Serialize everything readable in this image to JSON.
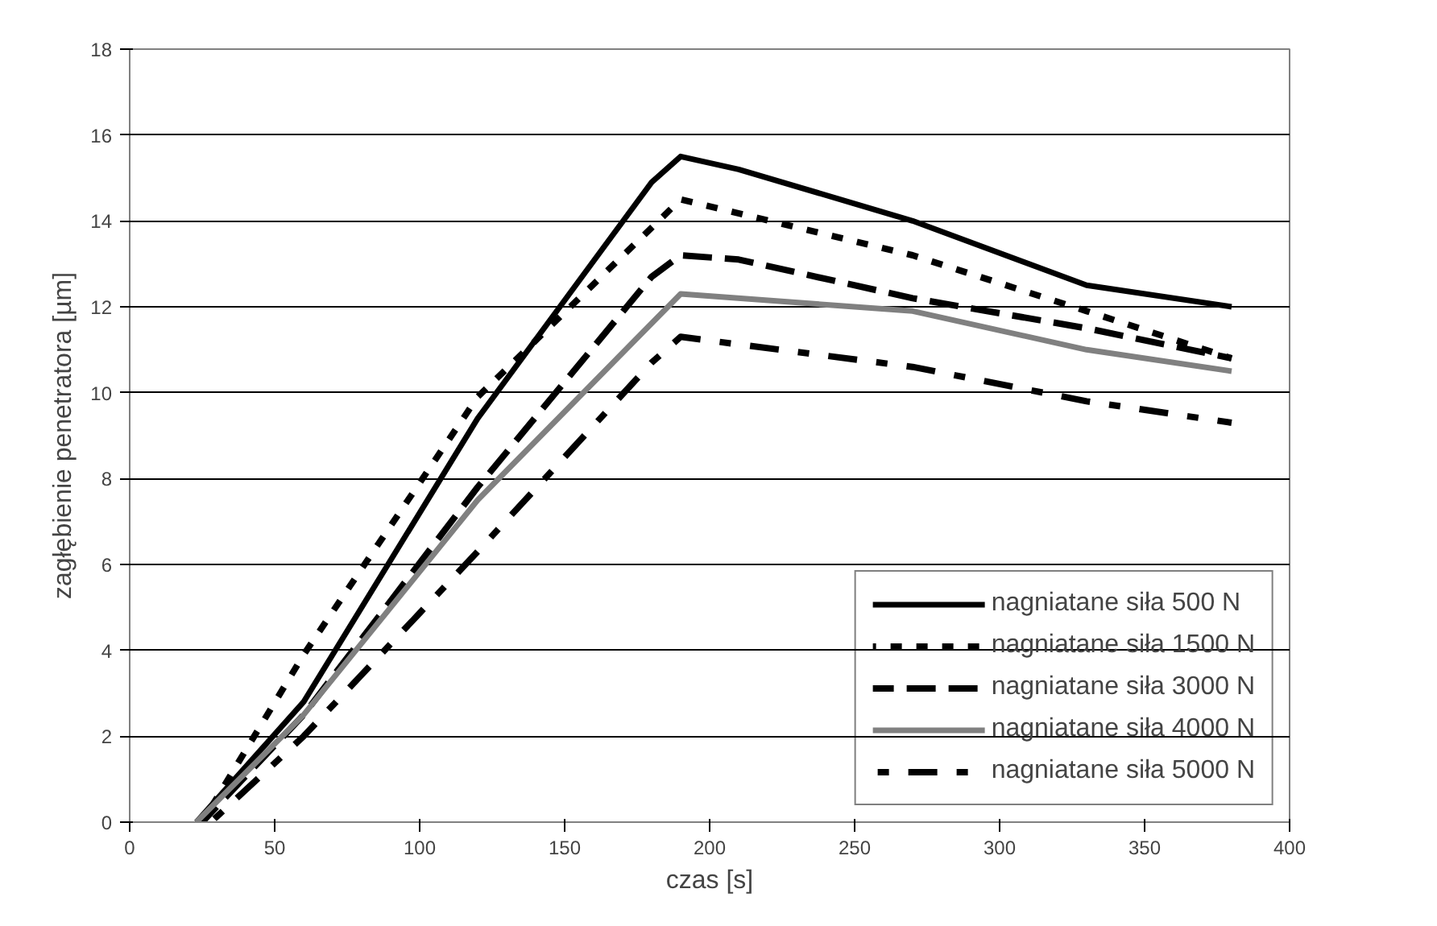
{
  "chart_data": {
    "type": "line",
    "xlabel": "czas [s]",
    "ylabel": "zagłębienie penetratora [µm]",
    "xlim": [
      0,
      400
    ],
    "xticks": [
      0,
      50,
      100,
      150,
      200,
      250,
      300,
      350,
      400
    ],
    "ylim": [
      0,
      18
    ],
    "yticks": [
      0,
      2,
      4,
      6,
      8,
      10,
      12,
      14,
      16,
      18
    ],
    "grid": "y",
    "legend": "bottom right",
    "series": [
      {
        "name": "nagniatane siła 500 N",
        "color": "#000000",
        "line_style": "solid",
        "x": [
          23,
          60,
          120,
          180,
          190,
          210,
          270,
          330,
          380
        ],
        "values": [
          0,
          2.8,
          9.4,
          14.9,
          15.5,
          15.2,
          14.0,
          12.5,
          12.0
        ]
      },
      {
        "name": "nagniatane siła 1500 N",
        "color": "#000000",
        "line_style": "dotted",
        "x": [
          25,
          60,
          120,
          190,
          270,
          330,
          380
        ],
        "values": [
          0,
          3.9,
          9.9,
          14.5,
          13.2,
          11.9,
          10.8
        ]
      },
      {
        "name": "nagniatane siła 3000 N",
        "color": "#000000",
        "line_style": "dashed",
        "x": [
          25,
          60,
          120,
          180,
          190,
          210,
          270,
          330,
          380
        ],
        "values": [
          0,
          2.5,
          7.8,
          12.7,
          13.2,
          13.1,
          12.2,
          11.5,
          10.8
        ]
      },
      {
        "name": "nagniatane siła 4000 N",
        "color": "#808080",
        "line_style": "solid",
        "x": [
          23,
          60,
          120,
          190,
          270,
          330,
          380
        ],
        "values": [
          0,
          2.5,
          7.5,
          12.3,
          11.9,
          11.0,
          10.5
        ]
      },
      {
        "name": "nagniatane siła 5000 N",
        "color": "#000000",
        "line_style": "dashdot",
        "x": [
          28,
          60,
          120,
          180,
          190,
          270,
          330,
          380
        ],
        "values": [
          0,
          2.0,
          6.3,
          10.7,
          11.3,
          10.6,
          9.8,
          9.3
        ]
      }
    ]
  }
}
